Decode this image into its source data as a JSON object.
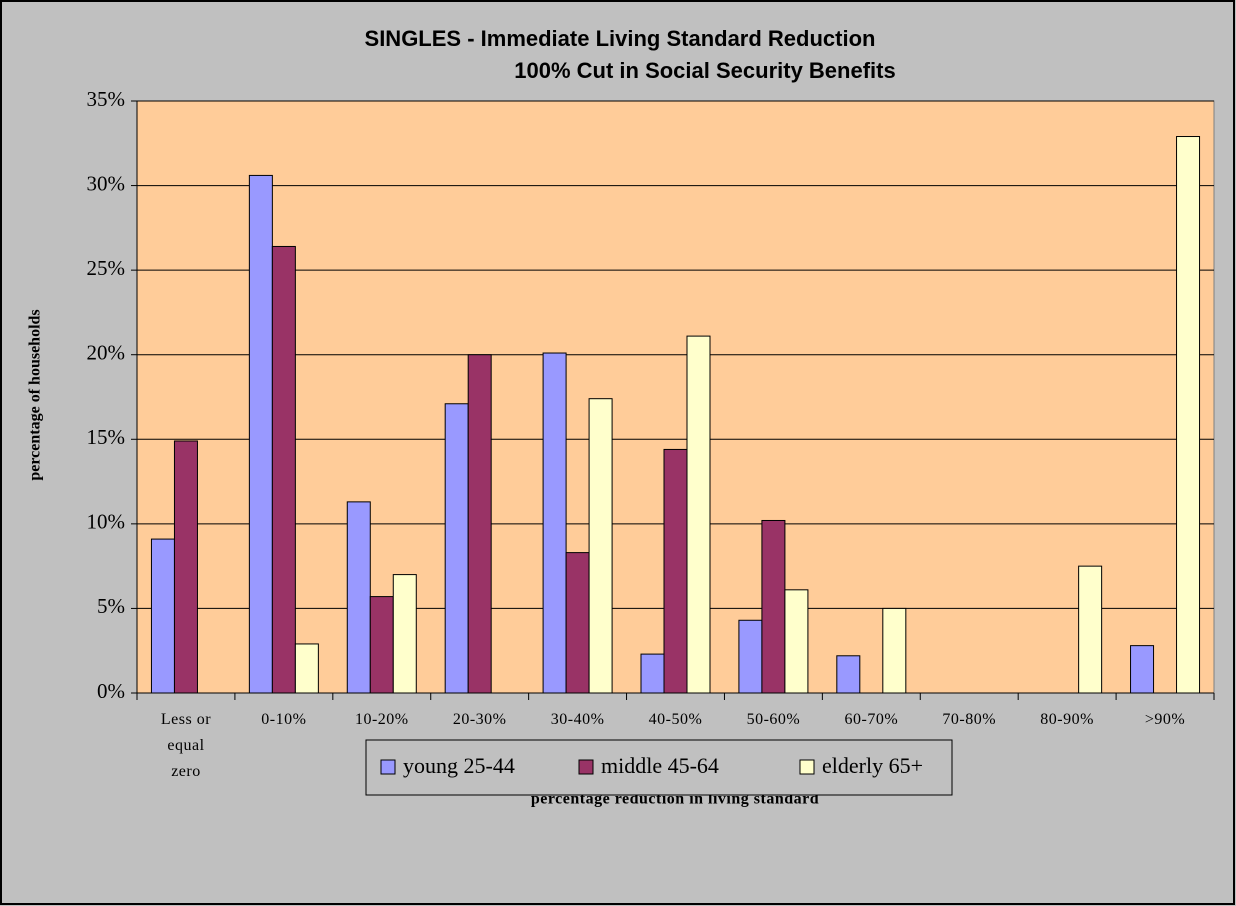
{
  "chart_data": {
    "type": "bar",
    "title": "SINGLES - Immediate Living Standard Reduction",
    "subtitle": "100% Cut in Social Security Benefits",
    "y_label": "percentage of households",
    "x_label": "percentage reduction in living standard",
    "categories": [
      "Less or equal zero",
      "0-10%",
      "10-20%",
      "20-30%",
      "30-40%",
      "40-50%",
      "50-60%",
      "60-70%",
      "70-80%",
      "80-90%",
      ">90%"
    ],
    "series": [
      {
        "name": "young 25-44",
        "color": "#9999ff",
        "values": [
          9.1,
          30.6,
          11.3,
          17.1,
          20.1,
          2.3,
          4.3,
          2.2,
          0,
          0,
          2.8
        ]
      },
      {
        "name": "middle 45-64",
        "color": "#993366",
        "values": [
          14.9,
          26.4,
          5.7,
          20.0,
          8.3,
          14.4,
          10.2,
          0,
          0,
          0,
          0
        ]
      },
      {
        "name": "elderly 65+",
        "color": "#ffffcc",
        "values": [
          0,
          2.9,
          7.0,
          0,
          17.4,
          21.1,
          6.1,
          5.0,
          0,
          7.5,
          32.9
        ]
      }
    ],
    "ylim": [
      0,
      35
    ],
    "yticks": [
      {
        "value": 0,
        "label": "0%"
      },
      {
        "value": 5,
        "label": "5%"
      },
      {
        "value": 10,
        "label": "10%"
      },
      {
        "value": 15,
        "label": "15%"
      },
      {
        "value": 20,
        "label": "20%"
      },
      {
        "value": 25,
        "label": "25%"
      },
      {
        "value": 30,
        "label": "30%"
      },
      {
        "value": 35,
        "label": "35%"
      }
    ],
    "grid": true,
    "legend": "bottom"
  }
}
